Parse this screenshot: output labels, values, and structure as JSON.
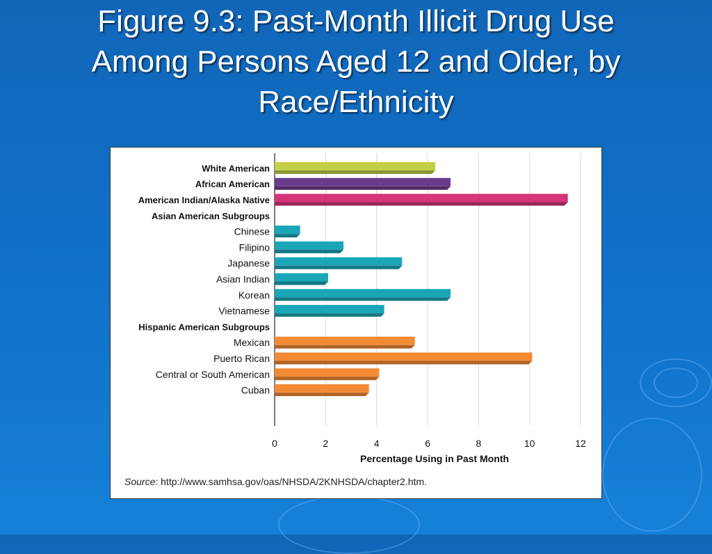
{
  "slide": {
    "title_line1": "Figure 9.3: Past-Month Illicit Drug Use",
    "title_line2": "Among Persons Aged 12 and Older, by",
    "title_line3": "Race/Ethnicity"
  },
  "source": {
    "label": "Source:",
    "text": "http://www.samhsa.gov/oas/NHSDA/2KNHSDA/chapter2.htm."
  },
  "colors": {
    "white_american": "#c3cf45",
    "african_american": "#6b3c8c",
    "american_indian": "#d6357a",
    "asian": "#1aa6b7",
    "hispanic": "#f58a35"
  },
  "chart_data": {
    "type": "bar",
    "orientation": "horizontal",
    "xlabel": "Percentage Using in Past Month",
    "xlim": [
      0,
      12
    ],
    "xticks": [
      0,
      2,
      4,
      6,
      8,
      10,
      12
    ],
    "grid": true,
    "rows": [
      {
        "label": "White American",
        "value": 6.3,
        "group": "white_american",
        "bold": true
      },
      {
        "label": "African American",
        "value": 6.9,
        "group": "african_american",
        "bold": true
      },
      {
        "label": "American Indian/Alaska Native",
        "value": 11.5,
        "group": "american_indian",
        "bold": true
      },
      {
        "label": "Asian American Subgroups",
        "value": null,
        "group": "header",
        "bold": true
      },
      {
        "label": "Chinese",
        "value": 1.0,
        "group": "asian",
        "bold": false
      },
      {
        "label": "Filipino",
        "value": 2.7,
        "group": "asian",
        "bold": false
      },
      {
        "label": "Japanese",
        "value": 5.0,
        "group": "asian",
        "bold": false
      },
      {
        "label": "Asian Indian",
        "value": 2.1,
        "group": "asian",
        "bold": false
      },
      {
        "label": "Korean",
        "value": 6.9,
        "group": "asian",
        "bold": false
      },
      {
        "label": "Vietnamese",
        "value": 4.3,
        "group": "asian",
        "bold": false
      },
      {
        "label": "Hispanic American Subgroups",
        "value": null,
        "group": "header",
        "bold": true
      },
      {
        "label": "Mexican",
        "value": 5.5,
        "group": "hispanic",
        "bold": false
      },
      {
        "label": "Puerto Rican",
        "value": 10.1,
        "group": "hispanic",
        "bold": false
      },
      {
        "label": "Central or South American",
        "value": 4.1,
        "group": "hispanic",
        "bold": false
      },
      {
        "label": "Cuban",
        "value": 3.7,
        "group": "hispanic",
        "bold": false
      }
    ]
  }
}
